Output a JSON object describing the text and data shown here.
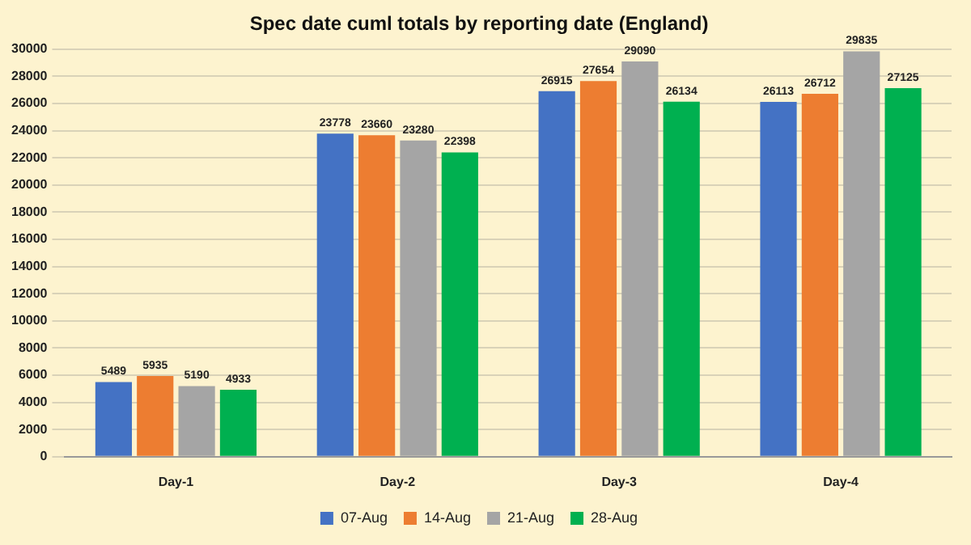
{
  "chart_data": {
    "type": "bar",
    "title": "Spec date cuml totals by reporting date (England)",
    "categories": [
      "Day-1",
      "Day-2",
      "Day-3",
      "Day-4"
    ],
    "series": [
      {
        "name": "07-Aug",
        "color": "#4472c4",
        "values": [
          5489,
          23778,
          26915,
          26113
        ]
      },
      {
        "name": "14-Aug",
        "color": "#ed7d31",
        "values": [
          5935,
          23660,
          27654,
          26712
        ]
      },
      {
        "name": "21-Aug",
        "color": "#a5a5a5",
        "values": [
          5190,
          23280,
          29090,
          29835
        ]
      },
      {
        "name": "28-Aug",
        "color": "#00b050",
        "values": [
          4933,
          22398,
          26134,
          27125
        ]
      }
    ],
    "ylim": [
      0,
      30000
    ],
    "yticks": [
      0,
      2000,
      4000,
      6000,
      8000,
      10000,
      12000,
      14000,
      16000,
      18000,
      20000,
      22000,
      24000,
      26000,
      28000,
      30000
    ],
    "grid": "y",
    "legend": "bottom",
    "data_labels": true
  }
}
